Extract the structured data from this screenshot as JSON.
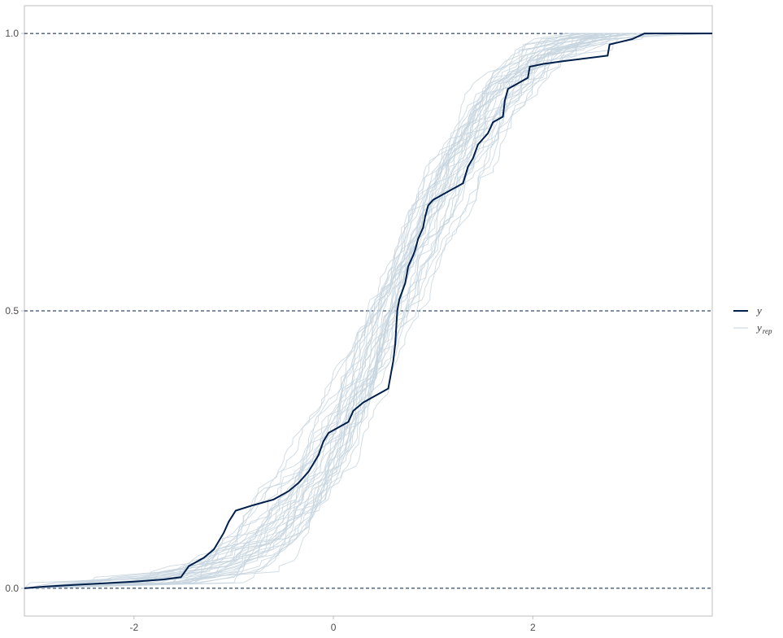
{
  "chart_data": {
    "type": "line",
    "title": "",
    "xlabel": "",
    "ylabel": "",
    "xlim": [
      -3.1,
      3.8
    ],
    "ylim": [
      -0.05,
      1.05
    ],
    "x_ticks": [
      {
        "value": -2,
        "label": "-2"
      },
      {
        "value": 0,
        "label": "0"
      },
      {
        "value": 2,
        "label": "2"
      }
    ],
    "y_ticks": [
      {
        "value": 0,
        "label": "0.0"
      },
      {
        "value": 0.5,
        "label": "0.5"
      },
      {
        "value": 1,
        "label": "1.0"
      }
    ],
    "reference_lines_y": [
      0,
      0.5,
      1
    ],
    "grid": false,
    "legend_position": "right",
    "legend": [
      {
        "key": "y",
        "label": "y",
        "subscript": "",
        "color": "#011f4b",
        "width": 2
      },
      {
        "key": "yrep",
        "label": "y",
        "subscript": "rep",
        "color": "#c6d3de",
        "width": 1
      }
    ],
    "series": [
      {
        "name": "y",
        "color": "#011f4b",
        "points": [
          [
            -3.1,
            0
          ],
          [
            -2.9,
            0.003
          ],
          [
            -2.6,
            0.006
          ],
          [
            -2.3,
            0.009
          ],
          [
            -2.0,
            0.012
          ],
          [
            -1.7,
            0.016
          ],
          [
            -1.53,
            0.02
          ],
          [
            -1.45,
            0.04
          ],
          [
            -1.3,
            0.055
          ],
          [
            -1.2,
            0.07
          ],
          [
            -1.1,
            0.1
          ],
          [
            -1.05,
            0.12
          ],
          [
            -0.98,
            0.14
          ],
          [
            -0.8,
            0.15
          ],
          [
            -0.6,
            0.16
          ],
          [
            -0.45,
            0.175
          ],
          [
            -0.35,
            0.19
          ],
          [
            -0.25,
            0.21
          ],
          [
            -0.2,
            0.225
          ],
          [
            -0.15,
            0.24
          ],
          [
            -0.1,
            0.265
          ],
          [
            -0.05,
            0.28
          ],
          [
            0.05,
            0.29
          ],
          [
            0.15,
            0.3
          ],
          [
            0.2,
            0.32
          ],
          [
            0.3,
            0.335
          ],
          [
            0.45,
            0.35
          ],
          [
            0.55,
            0.36
          ],
          [
            0.58,
            0.39
          ],
          [
            0.6,
            0.41
          ],
          [
            0.62,
            0.44
          ],
          [
            0.63,
            0.47
          ],
          [
            0.64,
            0.5
          ],
          [
            0.66,
            0.52
          ],
          [
            0.7,
            0.54
          ],
          [
            0.72,
            0.55
          ],
          [
            0.75,
            0.58
          ],
          [
            0.8,
            0.6
          ],
          [
            0.82,
            0.61
          ],
          [
            0.85,
            0.63
          ],
          [
            0.9,
            0.65
          ],
          [
            0.92,
            0.67
          ],
          [
            0.95,
            0.69
          ],
          [
            1.0,
            0.7
          ],
          [
            1.1,
            0.71
          ],
          [
            1.15,
            0.715
          ],
          [
            1.2,
            0.72
          ],
          [
            1.3,
            0.73
          ],
          [
            1.35,
            0.76
          ],
          [
            1.4,
            0.775
          ],
          [
            1.45,
            0.8
          ],
          [
            1.5,
            0.81
          ],
          [
            1.55,
            0.82
          ],
          [
            1.6,
            0.84
          ],
          [
            1.7,
            0.85
          ],
          [
            1.72,
            0.88
          ],
          [
            1.75,
            0.9
          ],
          [
            1.85,
            0.91
          ],
          [
            1.95,
            0.92
          ],
          [
            1.97,
            0.94
          ],
          [
            2.1,
            0.945
          ],
          [
            2.3,
            0.95
          ],
          [
            2.75,
            0.96
          ],
          [
            2.77,
            0.98
          ],
          [
            3.0,
            0.99
          ],
          [
            3.12,
            1.0
          ],
          [
            3.8,
            1.0
          ]
        ]
      }
    ],
    "replicate_count": 36
  }
}
